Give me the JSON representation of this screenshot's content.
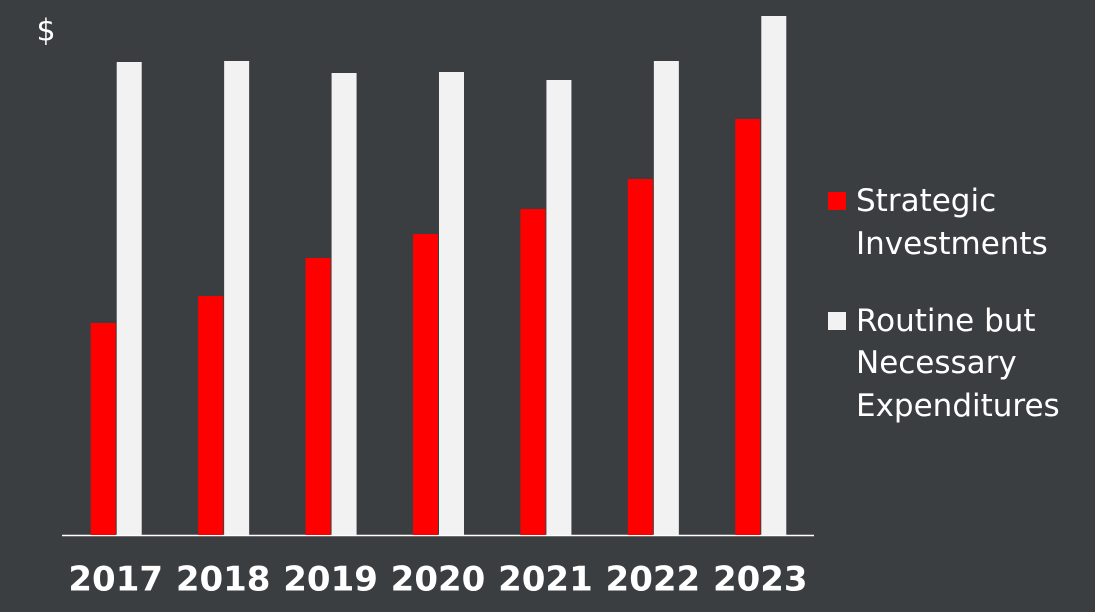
{
  "chart_data": {
    "type": "bar",
    "ylabel": "$",
    "categories": [
      "2017",
      "2018",
      "2019",
      "2020",
      "2021",
      "2022",
      "2023"
    ],
    "series": [
      {
        "name": "Strategic Investments",
        "color": "#ff0000",
        "values": [
          212,
          239,
          277,
          301,
          326,
          356,
          416
        ]
      },
      {
        "name": "Routine but Necessary Expenditures",
        "color": "#f2f2f2",
        "values": [
          473,
          474,
          462,
          463,
          455,
          474,
          519
        ]
      }
    ],
    "legend": "right"
  }
}
